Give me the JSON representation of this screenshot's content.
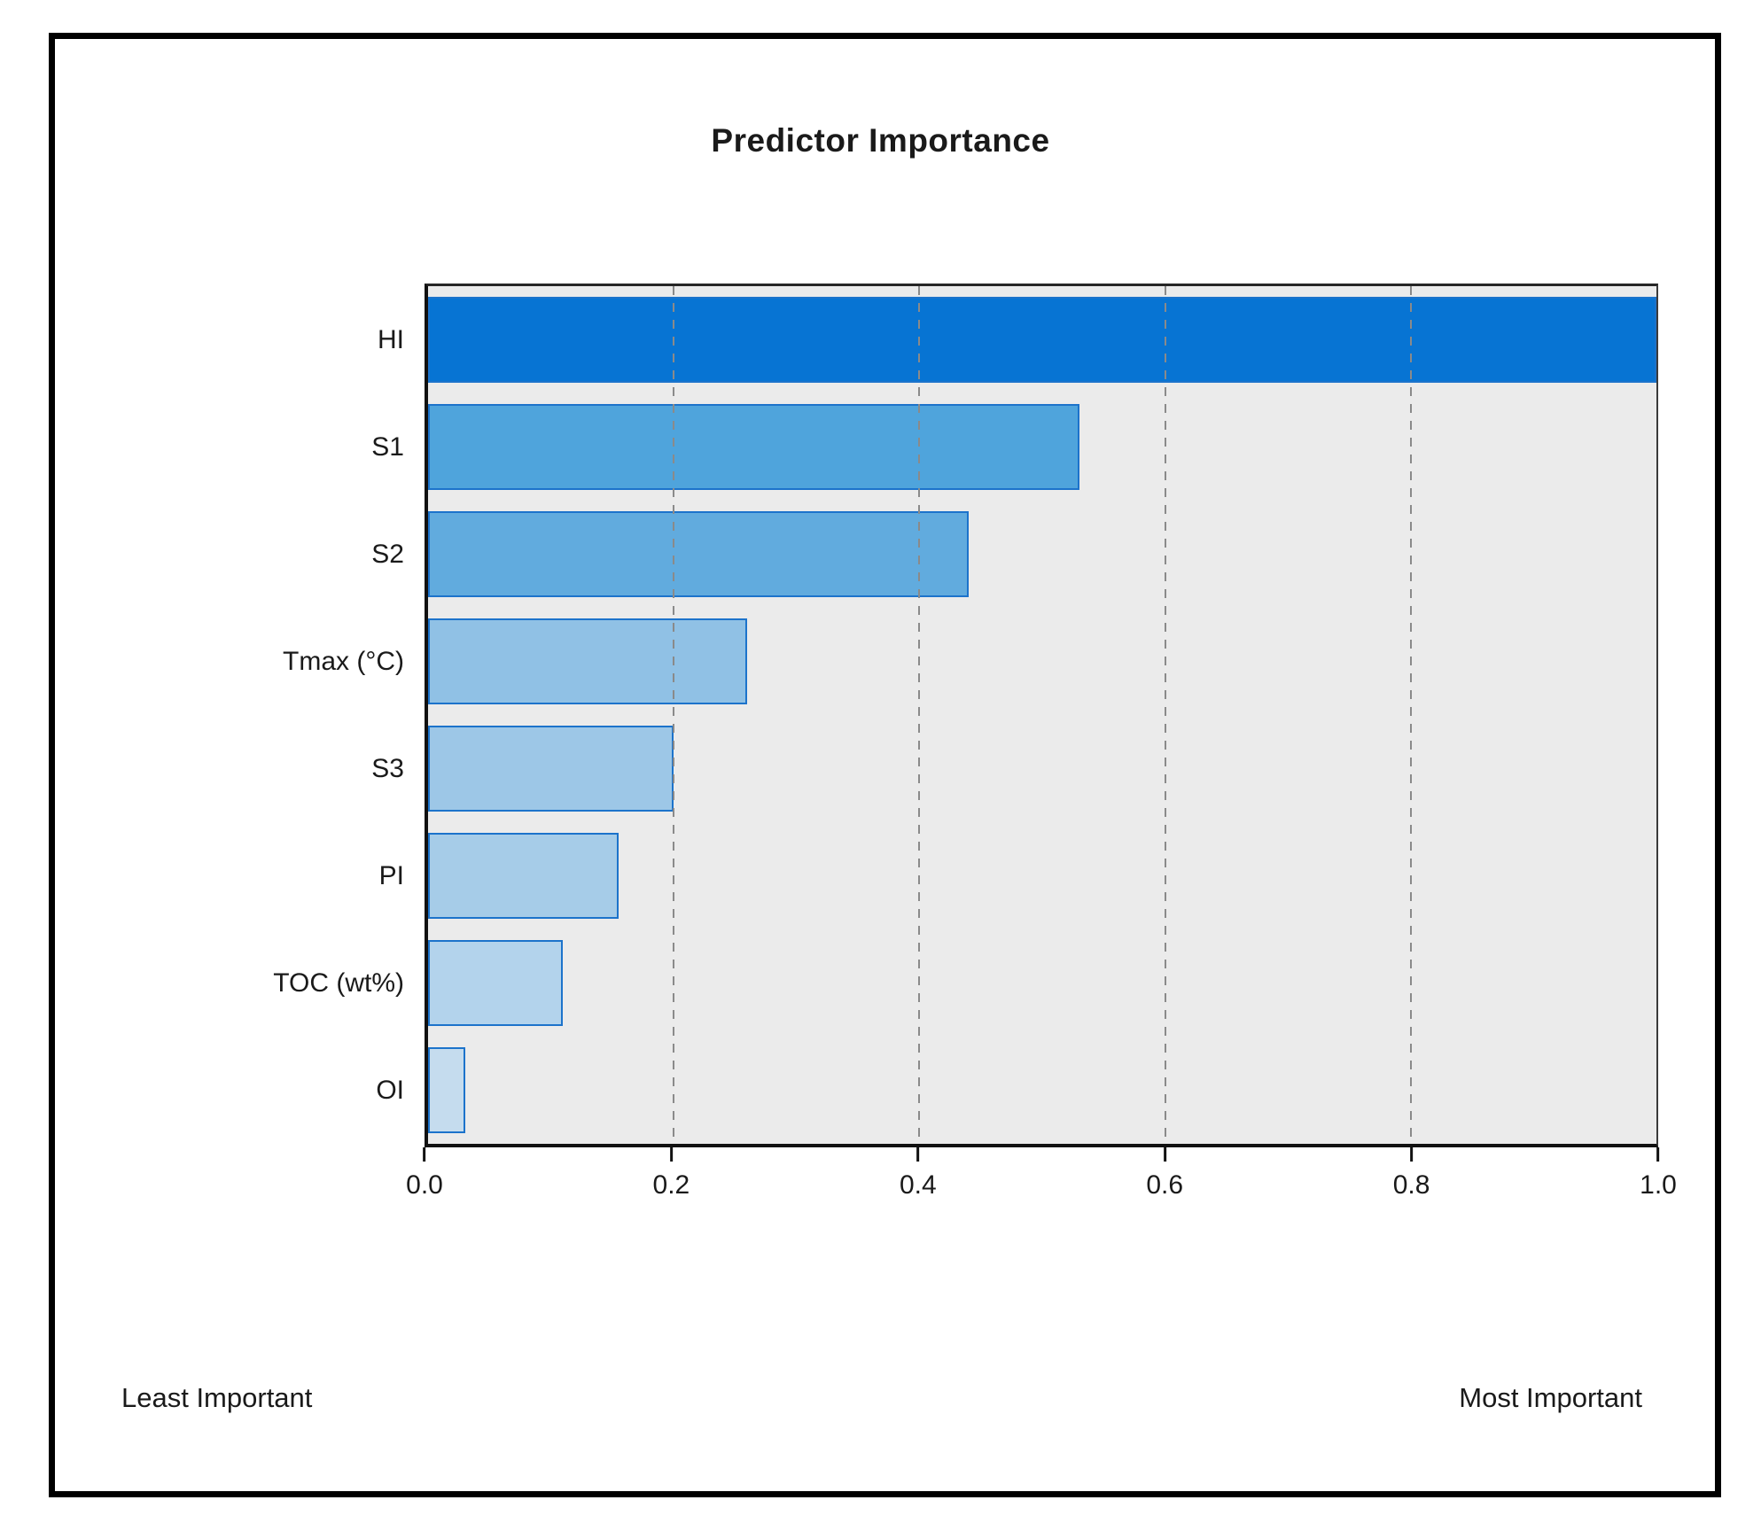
{
  "window": {
    "background": "#ffffff",
    "frame_color": "#000000"
  },
  "chart_data": {
    "type": "bar",
    "orientation": "horizontal",
    "title": "Predictor Importance",
    "categories": [
      "HI",
      "S1",
      "S2",
      "Tmax (°C)",
      "S3",
      "PI",
      "TOC (wt%)",
      "OI"
    ],
    "values": [
      1.0,
      0.53,
      0.44,
      0.26,
      0.2,
      0.155,
      0.11,
      0.03
    ],
    "bar_colors": [
      "#0774d3",
      "#4fa4dc",
      "#61abde",
      "#90c1e5",
      "#9dc7e7",
      "#a6cce8",
      "#b3d3ec",
      "#c5dcee"
    ],
    "bar_border_color": "#1c73cb",
    "xlim": [
      0,
      1
    ],
    "x_ticks": [
      0.0,
      0.2,
      0.4,
      0.6,
      0.8,
      1.0
    ],
    "x_tick_labels": [
      "0.0",
      "0.2",
      "0.4",
      "0.6",
      "0.8",
      "1.0"
    ],
    "gridlines": {
      "positions": [
        0.2,
        0.4,
        0.6,
        0.8
      ],
      "style": "dashed",
      "color": "#8a8a8a",
      "on_top_of_bars": true
    },
    "plot_background": "#ebebeb",
    "legend_position": "none",
    "annotations": {
      "left": "Least Important",
      "right": "Most Important"
    }
  }
}
